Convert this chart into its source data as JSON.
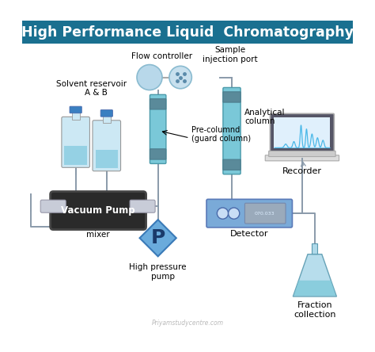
{
  "title": "High Performance Liquid  Chromatography",
  "title_bg": "#1a7090",
  "title_color": "white",
  "bg_color": "white",
  "light_blue": "#a8d8e8",
  "teal_col": "#7ac8d8",
  "cap_col": "#5a8a9a",
  "gray": "#b0b8c0",
  "components": {
    "solvent_label": "Solvent reservoir\n    A & B",
    "flow_label": "Flow controller",
    "pre_col_label": "Pre-columnd\n(guard column)",
    "sample_label": "Sample\ninjection port",
    "analytical_label": "Analytical\ncolumn",
    "recorder_label": "Recorder",
    "vacuum_label": "Vacuum Pump",
    "mixer_label": "mixer",
    "pressure_label": "High pressure\n    pump",
    "detector_label": "Detector",
    "fraction_label": "Fraction\ncollection",
    "watermark": "Priyamstudycentre.com"
  }
}
